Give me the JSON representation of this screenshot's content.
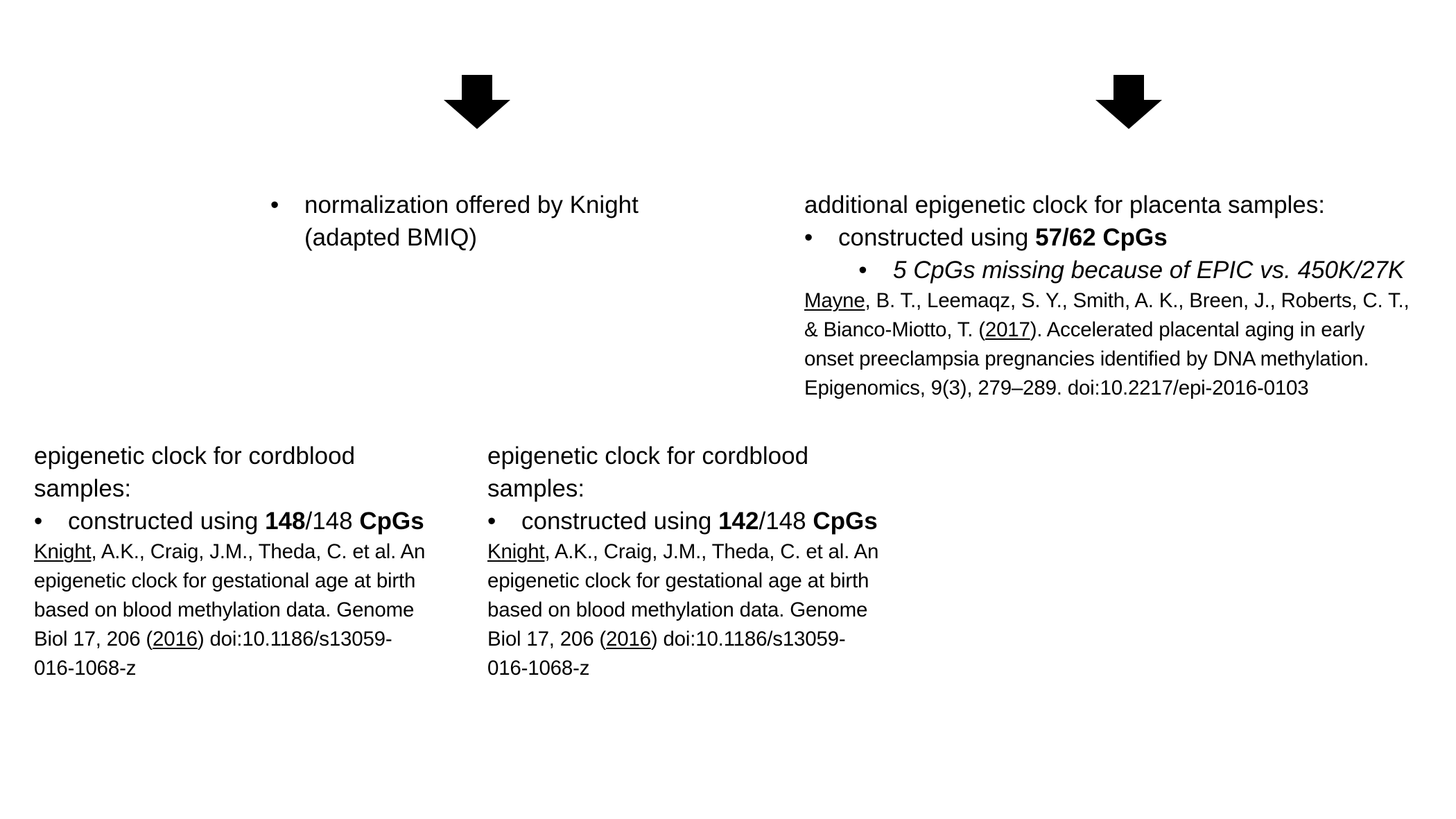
{
  "arrows": {
    "left_icon": "arrow-down-icon",
    "right_icon": "arrow-down-icon",
    "color": "#000000"
  },
  "normalization": {
    "bullet": "•",
    "line1": "normalization offered by Knight",
    "line2": "(adapted BMIQ)"
  },
  "placenta": {
    "heading": "additional epigenetic clock for placenta samples:",
    "bullet": "•",
    "constructed_prefix": "constructed using ",
    "constructed_bold": "57/62 CpGs",
    "sub_bullet": "•",
    "missing": "5 CpGs missing because of EPIC vs. 450K/27K",
    "ref": {
      "author_underlined": "Mayne",
      "line1_rest": ", B. T., Leemaqz, S. Y., Smith, A. K., Breen, J., Roberts, C. T.,",
      "line2_pre": "& Bianco-Miotto, T. (",
      "year": "2017",
      "line2_post": "). Accelerated placental aging in early",
      "line3": "onset preeclampsia pregnancies identified by DNA methylation.",
      "line4": "Epigenomics, 9(3), 279–289. doi:10.2217/epi-2016-0103"
    }
  },
  "cord_left": {
    "heading_line1": "epigenetic clock for cordblood",
    "heading_line2": "samples:",
    "bullet": "•",
    "constructed_prefix": "constructed using ",
    "count_bold": "148",
    "count_rest": "/148 ",
    "cpgs_bold": "CpGs",
    "ref": {
      "author_underlined": "Knight",
      "line1_rest": ", A.K., Craig, J.M., Theda, C. et al. An",
      "line2": "epigenetic clock for gestational age at birth",
      "line3": "based on blood methylation data. Genome",
      "line4_pre": "Biol 17, 206 (",
      "year": "2016",
      "line4_post": ") doi:10.1186/s13059-",
      "line5": "016-1068-z"
    }
  },
  "cord_right": {
    "heading_line1": "epigenetic clock for cordblood",
    "heading_line2": "samples:",
    "bullet": "•",
    "constructed_prefix": "constructed using ",
    "count_bold": "142",
    "count_rest": "/148 ",
    "cpgs_bold": "CpGs",
    "ref": {
      "author_underlined": "Knight",
      "line1_rest": ", A.K., Craig, J.M., Theda, C. et al. An",
      "line2": "epigenetic clock for gestational age at birth",
      "line3": "based on blood methylation data. Genome",
      "line4_pre": "Biol 17, 206 (",
      "year": "2016",
      "line4_post": ") doi:10.1186/s13059-",
      "line5": "016-1068-z"
    }
  }
}
